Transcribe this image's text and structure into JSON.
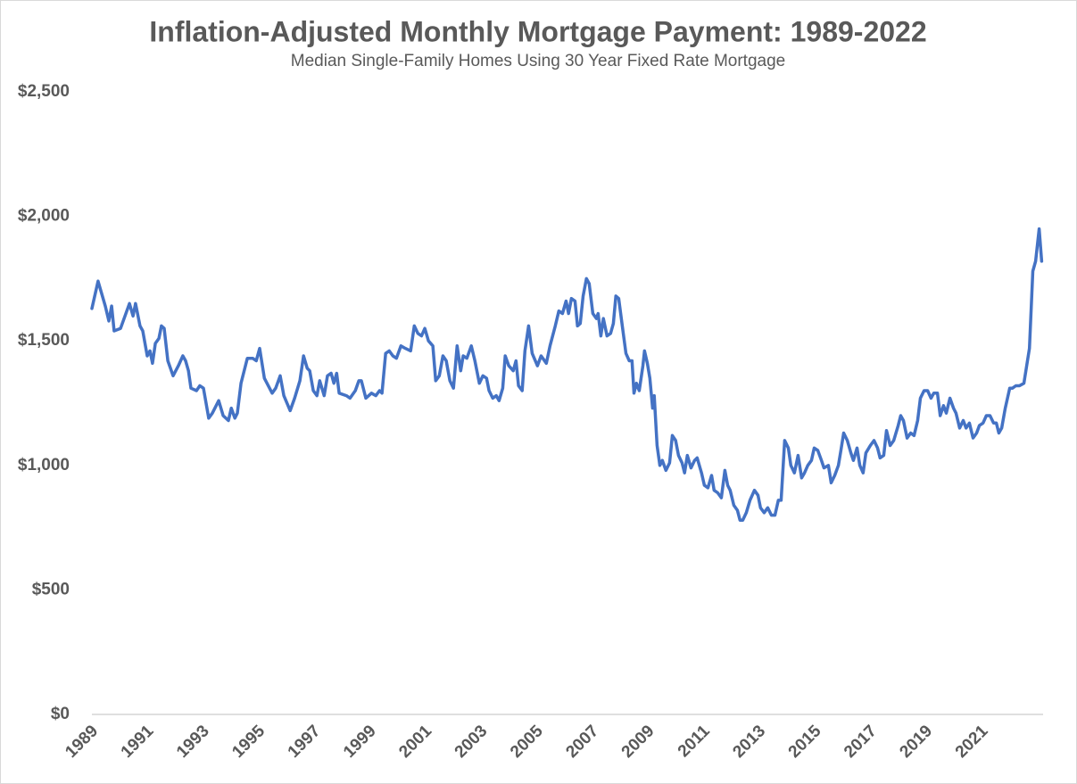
{
  "chart_data": {
    "type": "line",
    "title": "Inflation-Adjusted Monthly Mortgage Payment: 1989-2022",
    "subtitle": "Median Single-Family Homes Using 30 Year Fixed Rate Mortgage",
    "color": "#4472c4",
    "x": [
      1989.0,
      1989.22,
      1989.48,
      1989.61,
      1989.71,
      1989.8,
      1990.03,
      1990.35,
      1990.48,
      1990.57,
      1990.73,
      1990.83,
      1990.99,
      1991.09,
      1991.18,
      1991.28,
      1991.41,
      1991.5,
      1991.6,
      1991.73,
      1991.92,
      1992.11,
      1992.27,
      1992.37,
      1992.47,
      1992.56,
      1992.76,
      1992.88,
      1993.01,
      1993.2,
      1993.33,
      1993.56,
      1993.72,
      1993.91,
      1994.01,
      1994.14,
      1994.23,
      1994.36,
      1994.59,
      1994.78,
      1994.91,
      1995.03,
      1995.2,
      1995.48,
      1995.61,
      1995.77,
      1995.9,
      1996.13,
      1996.29,
      1996.48,
      1996.61,
      1996.74,
      1996.83,
      1996.96,
      1997.09,
      1997.19,
      1997.35,
      1997.47,
      1997.6,
      1997.7,
      1997.8,
      1997.89,
      1998.15,
      1998.28,
      1998.47,
      1998.6,
      1998.69,
      1998.85,
      1999.05,
      1999.21,
      1999.34,
      1999.43,
      1999.56,
      1999.69,
      1999.82,
      1999.95,
      2000.11,
      2000.27,
      2000.46,
      2000.59,
      2000.72,
      2000.85,
      2000.97,
      2001.1,
      2001.26,
      2001.36,
      2001.49,
      2001.62,
      2001.74,
      2001.87,
      2002.0,
      2002.13,
      2002.26,
      2002.35,
      2002.48,
      2002.64,
      2002.77,
      2002.93,
      2003.06,
      2003.19,
      2003.28,
      2003.41,
      2003.54,
      2003.64,
      2003.77,
      2003.86,
      2003.99,
      2004.15,
      2004.25,
      2004.34,
      2004.47,
      2004.57,
      2004.7,
      2004.83,
      2005.02,
      2005.15,
      2005.34,
      2005.47,
      2005.66,
      2005.79,
      2005.92,
      2006.05,
      2006.14,
      2006.24,
      2006.37,
      2006.46,
      2006.56,
      2006.66,
      2006.78,
      2006.88,
      2007.01,
      2007.14,
      2007.2,
      2007.3,
      2007.39,
      2007.52,
      2007.65,
      2007.75,
      2007.84,
      2007.94,
      2008.07,
      2008.2,
      2008.32,
      2008.42,
      2008.49,
      2008.58,
      2008.68,
      2008.81,
      2008.87,
      2008.97,
      2009.06,
      2009.16,
      2009.22,
      2009.32,
      2009.42,
      2009.51,
      2009.64,
      2009.77,
      2009.87,
      2009.99,
      2010.09,
      2010.22,
      2010.31,
      2010.41,
      2010.54,
      2010.67,
      2010.76,
      2010.92,
      2011.02,
      2011.15,
      2011.28,
      2011.37,
      2011.5,
      2011.63,
      2011.76,
      2011.86,
      2011.95,
      2012.08,
      2012.21,
      2012.3,
      2012.4,
      2012.53,
      2012.66,
      2012.82,
      2012.95,
      2013.04,
      2013.17,
      2013.3,
      2013.43,
      2013.56,
      2013.68,
      2013.78,
      2013.91,
      2014.04,
      2014.13,
      2014.26,
      2014.39,
      2014.52,
      2014.62,
      2014.74,
      2014.87,
      2014.97,
      2015.1,
      2015.23,
      2015.32,
      2015.48,
      2015.58,
      2015.71,
      2015.84,
      2015.93,
      2016.03,
      2016.16,
      2016.29,
      2016.38,
      2016.51,
      2016.61,
      2016.73,
      2016.83,
      2016.99,
      2017.12,
      2017.25,
      2017.34,
      2017.47,
      2017.57,
      2017.7,
      2017.83,
      2017.99,
      2018.08,
      2018.18,
      2018.31,
      2018.44,
      2018.56,
      2018.69,
      2018.79,
      2018.92,
      2019.05,
      2019.17,
      2019.27,
      2019.4,
      2019.5,
      2019.62,
      2019.72,
      2019.85,
      2019.98,
      2020.07,
      2020.2,
      2020.33,
      2020.43,
      2020.55,
      2020.68,
      2020.81,
      2020.91,
      2021.04,
      2021.16,
      2021.29,
      2021.42,
      2021.52,
      2021.61,
      2021.71,
      2021.84,
      2022.0,
      2022.1,
      2022.22,
      2022.35,
      2022.51,
      2022.61,
      2022.71,
      2022.83,
      2022.93,
      2023.06,
      2023.15
    ],
    "values": [
      1630,
      1740,
      1640,
      1580,
      1640,
      1540,
      1550,
      1650,
      1600,
      1650,
      1560,
      1540,
      1440,
      1460,
      1410,
      1490,
      1510,
      1560,
      1550,
      1420,
      1360,
      1400,
      1440,
      1420,
      1380,
      1310,
      1300,
      1320,
      1310,
      1190,
      1210,
      1260,
      1200,
      1180,
      1230,
      1190,
      1210,
      1330,
      1430,
      1430,
      1420,
      1470,
      1350,
      1290,
      1310,
      1360,
      1280,
      1220,
      1270,
      1340,
      1440,
      1390,
      1380,
      1300,
      1280,
      1340,
      1280,
      1360,
      1370,
      1330,
      1370,
      1290,
      1280,
      1270,
      1300,
      1340,
      1340,
      1270,
      1290,
      1280,
      1300,
      1290,
      1450,
      1460,
      1440,
      1430,
      1480,
      1470,
      1460,
      1560,
      1530,
      1520,
      1550,
      1500,
      1480,
      1340,
      1360,
      1440,
      1420,
      1340,
      1310,
      1480,
      1380,
      1440,
      1430,
      1480,
      1420,
      1330,
      1360,
      1350,
      1300,
      1270,
      1280,
      1260,
      1310,
      1440,
      1400,
      1380,
      1420,
      1320,
      1300,
      1460,
      1560,
      1450,
      1400,
      1440,
      1410,
      1480,
      1560,
      1620,
      1610,
      1660,
      1610,
      1670,
      1660,
      1560,
      1570,
      1680,
      1750,
      1730,
      1610,
      1590,
      1610,
      1520,
      1590,
      1520,
      1530,
      1570,
      1680,
      1670,
      1560,
      1450,
      1420,
      1420,
      1290,
      1330,
      1300,
      1400,
      1460,
      1410,
      1350,
      1230,
      1280,
      1080,
      1000,
      1020,
      980,
      1010,
      1120,
      1100,
      1040,
      1010,
      970,
      1040,
      990,
      1020,
      1030,
      970,
      920,
      910,
      960,
      900,
      890,
      870,
      980,
      920,
      900,
      840,
      820,
      780,
      780,
      810,
      860,
      900,
      880,
      830,
      810,
      830,
      800,
      800,
      860,
      860,
      1100,
      1070,
      1000,
      970,
      1040,
      950,
      970,
      1000,
      1020,
      1070,
      1060,
      1020,
      990,
      1000,
      930,
      960,
      1000,
      1060,
      1130,
      1100,
      1050,
      1020,
      1070,
      1000,
      970,
      1050,
      1080,
      1100,
      1070,
      1030,
      1040,
      1140,
      1080,
      1100,
      1160,
      1200,
      1180,
      1110,
      1130,
      1120,
      1180,
      1270,
      1300,
      1300,
      1270,
      1290,
      1290,
      1200,
      1240,
      1210,
      1270,
      1230,
      1210,
      1150,
      1180,
      1150,
      1170,
      1110,
      1130,
      1160,
      1170,
      1200,
      1200,
      1170,
      1170,
      1130,
      1150,
      1230,
      1310,
      1310,
      1320,
      1320,
      1330,
      1400,
      1470,
      1780,
      1820,
      1950,
      1820
    ],
    "xlim": [
      1989,
      2023.2
    ],
    "xticks": [
      1989,
      1991,
      1993,
      1995,
      1997,
      1999,
      2001,
      2003,
      2005,
      2007,
      2009,
      2011,
      2013,
      2015,
      2017,
      2019,
      2021
    ],
    "ylim": [
      0,
      2500
    ],
    "yticks": [
      {
        "value": 0,
        "label": "$0"
      },
      {
        "value": 500,
        "label": "$500"
      },
      {
        "value": 1000,
        "label": "$1,000"
      },
      {
        "value": 1500,
        "label": "$1,500"
      },
      {
        "value": 2000,
        "label": "$2,000"
      },
      {
        "value": 2500,
        "label": "$2,500"
      }
    ],
    "grid": false
  }
}
